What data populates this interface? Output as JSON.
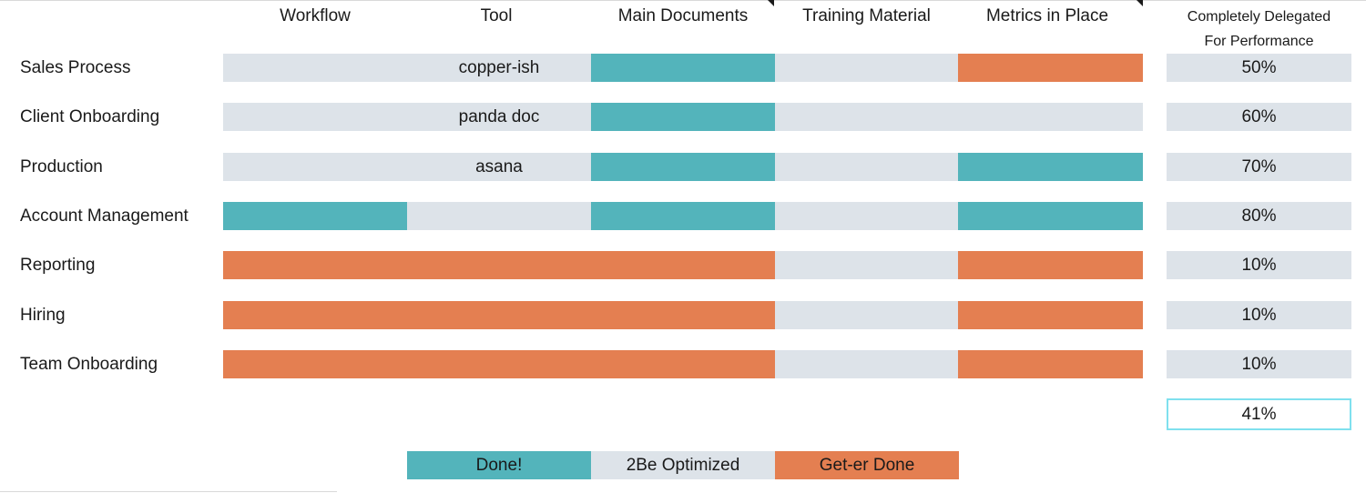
{
  "colors": {
    "done": "#53b4bb",
    "optimize": "#dde3e9",
    "geter": "#e47f51",
    "total_border": "#7fe0ee"
  },
  "headers": {
    "workflow": "Workflow",
    "tool": "Tool",
    "main_documents": "Main Documents",
    "training_material": "Training Material",
    "metrics_in_place": "Metrics in Place",
    "delegated_line1": "Completely Delegated",
    "delegated_line2": "For Performance"
  },
  "rows": [
    {
      "label": "Sales Process",
      "cells": [
        "optimize",
        "optimize",
        "done",
        "optimize",
        "geter"
      ],
      "tool_text": "copper-ish",
      "percent": "50%"
    },
    {
      "label": "Client Onboarding",
      "cells": [
        "optimize",
        "optimize",
        "done",
        "optimize",
        "optimize"
      ],
      "tool_text": "panda doc",
      "percent": "60%"
    },
    {
      "label": "Production",
      "cells": [
        "optimize",
        "optimize",
        "done",
        "optimize",
        "done"
      ],
      "tool_text": "asana",
      "percent": "70%"
    },
    {
      "label": "Account Management",
      "cells": [
        "done",
        "optimize",
        "done",
        "optimize",
        "done"
      ],
      "tool_text": "",
      "percent": "80%"
    },
    {
      "label": "Reporting",
      "cells": [
        "geter",
        "geter",
        "geter",
        "optimize",
        "geter"
      ],
      "tool_text": "",
      "percent": "10%"
    },
    {
      "label": "Hiring",
      "cells": [
        "geter",
        "geter",
        "geter",
        "optimize",
        "geter"
      ],
      "tool_text": "",
      "percent": "10%"
    },
    {
      "label": "Team Onboarding",
      "cells": [
        "geter",
        "geter",
        "geter",
        "optimize",
        "geter"
      ],
      "tool_text": "",
      "percent": "10%"
    }
  ],
  "total_percent": "41%",
  "legend": {
    "done": "Done!",
    "optimize": "2Be Optimized",
    "geter": "Get-er Done"
  }
}
